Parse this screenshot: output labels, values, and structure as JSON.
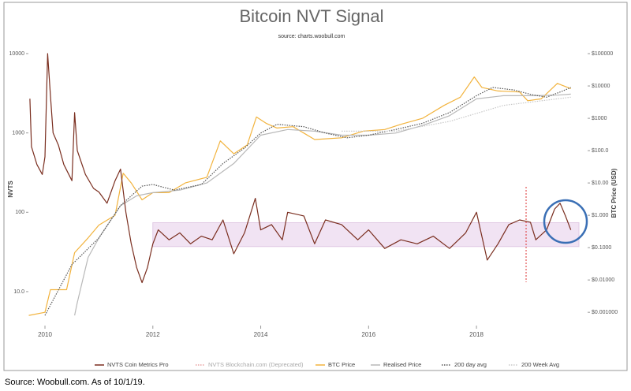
{
  "chart_data": {
    "type": "line",
    "title": "Bitcoin NVT Signal",
    "subtitle": "source: charts.woobull.com",
    "y_label": "NVTS",
    "y2_label": "BTC Price (USD)",
    "source": "Source:  Woobull.com.  As  of  10/1/19.",
    "xlim": [
      2009.7,
      2019.9
    ],
    "xticks": [
      2010,
      2012,
      2014,
      2016,
      2018
    ],
    "ylim": [
      4,
      12000
    ],
    "log_y": true,
    "yticks": [
      {
        "value": 10,
        "label": "10.0"
      },
      100,
      1000,
      10000
    ],
    "y2lim": [
      0.00046,
      157000
    ],
    "log_y2": true,
    "y2ticks": [
      {
        "value": 0.001,
        "label": "$0.001000"
      },
      {
        "value": 0.01,
        "label": "$0.01000"
      },
      {
        "value": 0.1,
        "label": "$0.1000"
      },
      {
        "value": 1,
        "label": "$1.000"
      },
      {
        "value": 10,
        "label": "$10.00"
      },
      {
        "value": 100,
        "label": "$100.0"
      },
      {
        "value": 1000,
        "label": "$1000"
      },
      {
        "value": 10000,
        "label": "$10000"
      },
      {
        "value": 100000,
        "label": "$100000"
      }
    ],
    "band": {
      "x": [
        2012,
        2019.9
      ],
      "y": [
        37,
        74
      ],
      "color": "#f1e3f3"
    },
    "series": [
      {
        "name": "NVTS Coin Metrics Pro",
        "color": "#7a2e1f",
        "axis": "y",
        "style": "solid",
        "x": [
          2009.72,
          2009.75,
          2009.85,
          2009.95,
          2010.0,
          2010.05,
          2010.1,
          2010.15,
          2010.25,
          2010.35,
          2010.5,
          2010.55,
          2010.6,
          2010.75,
          2010.9,
          2011.0,
          2011.15,
          2011.3,
          2011.4,
          2011.5,
          2011.6,
          2011.7,
          2011.8,
          2011.9,
          2012.0,
          2012.1,
          2012.3,
          2012.5,
          2012.7,
          2012.9,
          2013.1,
          2013.3,
          2013.5,
          2013.7,
          2013.9,
          2014.0,
          2014.2,
          2014.4,
          2014.5,
          2014.8,
          2015.0,
          2015.2,
          2015.5,
          2015.8,
          2016.0,
          2016.3,
          2016.6,
          2016.9,
          2017.2,
          2017.5,
          2017.8,
          2018.0,
          2018.1,
          2018.2,
          2018.4,
          2018.6,
          2018.8,
          2019.0,
          2019.1,
          2019.3,
          2019.45,
          2019.55,
          2019.65,
          2019.75
        ],
        "values": [
          2700,
          670,
          400,
          300,
          500,
          10000,
          3000,
          1000,
          700,
          400,
          250,
          1800,
          600,
          300,
          200,
          180,
          130,
          250,
          350,
          100,
          40,
          20,
          13,
          20,
          40,
          60,
          45,
          55,
          40,
          50,
          45,
          80,
          30,
          55,
          150,
          60,
          70,
          45,
          100,
          90,
          40,
          80,
          70,
          45,
          60,
          35,
          45,
          40,
          50,
          35,
          55,
          100,
          50,
          25,
          40,
          70,
          80,
          75,
          45,
          60,
          110,
          130,
          90,
          60
        ]
      },
      {
        "name": "NVTS Blockchain.com (Deprecated)",
        "color": "#e8a0a0",
        "axis": "y",
        "style": "dotted",
        "x": [],
        "values": []
      },
      {
        "name": "BTC Price",
        "color": "#f2b33d",
        "axis": "y2",
        "style": "solid",
        "x": [
          2009.7,
          2010.0,
          2010.1,
          2010.4,
          2010.55,
          2010.8,
          2011.0,
          2011.3,
          2011.45,
          2011.6,
          2011.8,
          2012.0,
          2012.3,
          2012.6,
          2013.0,
          2013.25,
          2013.5,
          2013.75,
          2013.92,
          2014.1,
          2014.3,
          2014.6,
          2014.8,
          2015.0,
          2015.5,
          2015.9,
          2016.3,
          2016.6,
          2017.0,
          2017.4,
          2017.7,
          2017.96,
          2018.1,
          2018.4,
          2018.8,
          2018.95,
          2019.2,
          2019.45,
          2019.5,
          2019.75
        ],
        "values": [
          0.0008,
          0.001,
          0.005,
          0.005,
          0.07,
          0.2,
          0.5,
          1,
          20,
          10,
          3,
          5,
          5,
          10,
          15,
          200,
          80,
          150,
          1100,
          700,
          500,
          550,
          350,
          220,
          250,
          400,
          450,
          650,
          1000,
          2500,
          4500,
          19000,
          9000,
          7000,
          6500,
          3500,
          4000,
          10000,
          12000,
          8300
        ]
      },
      {
        "name": "Realised Price",
        "color": "#b8b8b8",
        "axis": "y2",
        "style": "solid",
        "x": [
          2010.55,
          2010.6,
          2010.8,
          2011.0,
          2011.4,
          2011.7,
          2012.0,
          2012.5,
          2013.0,
          2013.5,
          2014.0,
          2014.5,
          2015.0,
          2015.5,
          2016.0,
          2016.5,
          2017.0,
          2017.5,
          2018.0,
          2018.5,
          2019.0,
          2019.5,
          2019.75
        ],
        "values": [
          0.0008,
          0.002,
          0.05,
          0.2,
          2,
          4,
          5,
          6,
          10,
          40,
          300,
          450,
          400,
          300,
          300,
          350,
          600,
          1200,
          4000,
          5000,
          5000,
          5200,
          5600
        ]
      },
      {
        "name": "200 day avg",
        "color": "#555555",
        "axis": "y2",
        "style": "dotted",
        "x": [
          2010.0,
          2010.5,
          2011.0,
          2011.4,
          2011.8,
          2012.0,
          2012.4,
          2012.9,
          2013.3,
          2013.7,
          2014.0,
          2014.3,
          2014.8,
          2015.2,
          2015.6,
          2016.0,
          2016.5,
          2017.0,
          2017.5,
          2018.0,
          2018.3,
          2018.7,
          2019.0,
          2019.3,
          2019.6,
          2019.75
        ],
        "values": [
          0.0008,
          0.03,
          0.2,
          2,
          8,
          9,
          6,
          9,
          40,
          120,
          350,
          650,
          550,
          350,
          250,
          300,
          450,
          700,
          1500,
          5000,
          9000,
          7500,
          5500,
          4500,
          7000,
          9000
        ]
      },
      {
        "name": "200 Week Avg",
        "color": "#c8c8c8",
        "axis": "y2",
        "style": "dotted",
        "x": [
          2015.5,
          2016.5,
          2017.5,
          2018.5,
          2019.75
        ],
        "values": [
          400,
          400,
          800,
          2500,
          4500
        ]
      }
    ]
  }
}
